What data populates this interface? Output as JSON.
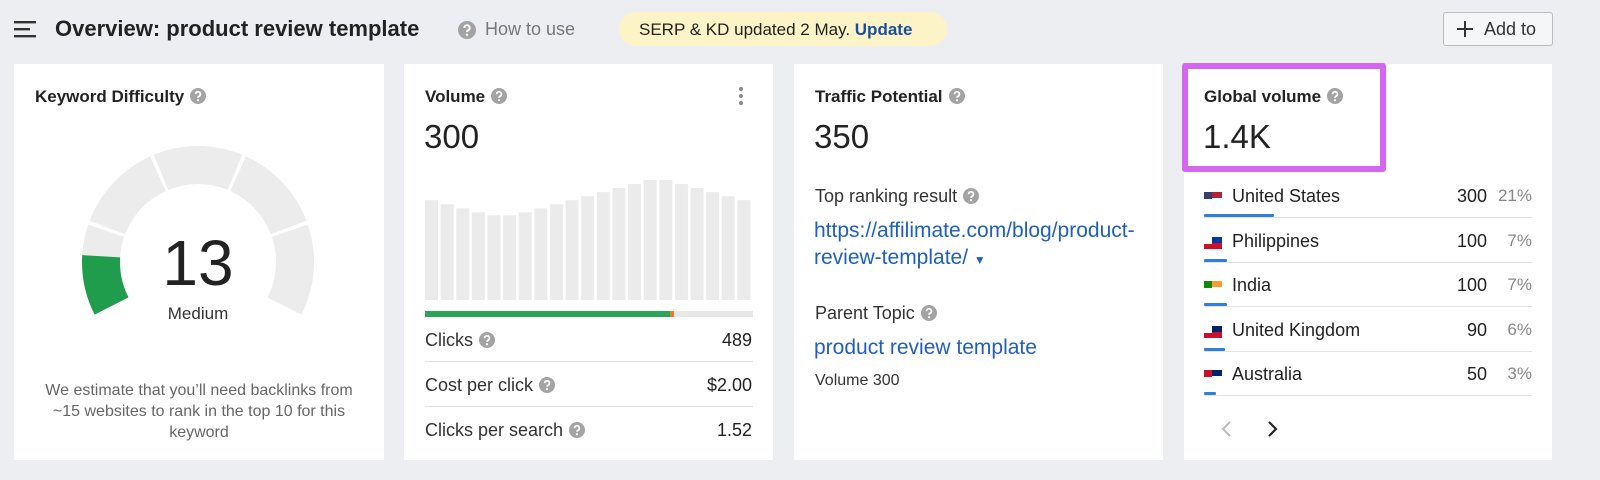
{
  "header": {
    "title": "Overview: product review template",
    "help": "How to use",
    "notice": "SERP & KD updated 2 May.",
    "notice_link": "Update",
    "add_button": "Add to"
  },
  "keyword_difficulty": {
    "title": "Keyword Difficulty",
    "value": 13,
    "level": "Medium",
    "description": "We estimate that you’ll need backlinks from ~15 websites to rank in the top 10 for this keyword"
  },
  "volume": {
    "title": "Volume",
    "value": 300,
    "trend": [
      99,
      95,
      91,
      87,
      84,
      84,
      87,
      91,
      95,
      99,
      103,
      107,
      111,
      115,
      119,
      119,
      115,
      111,
      107,
      103,
      99
    ],
    "metrics": [
      {
        "label": "Clicks",
        "value": 489
      },
      {
        "label": "Cost per click",
        "value": "$2.00"
      },
      {
        "label": "Clicks per search",
        "value": 1.52
      }
    ]
  },
  "traffic_potential": {
    "title": "Traffic Potential",
    "value": 350,
    "top_result_label": "Top ranking result",
    "top_result_url": "https://affilimate.com/blog/product-review-template/",
    "parent_topic_label": "Parent Topic",
    "parent_topic": "product review template",
    "parent_volume": "Volume 300"
  },
  "global_volume": {
    "title": "Global volume",
    "value": "1.4K",
    "countries": [
      {
        "name": "United States",
        "volume": 300,
        "share": "21%"
      },
      {
        "name": "Philippines",
        "volume": 100,
        "share": "7%"
      },
      {
        "name": "India",
        "volume": 100,
        "share": "7%"
      },
      {
        "name": "United Kingdom",
        "volume": 90,
        "share": "6%"
      },
      {
        "name": "Australia",
        "volume": 50,
        "share": "3%"
      }
    ]
  }
}
